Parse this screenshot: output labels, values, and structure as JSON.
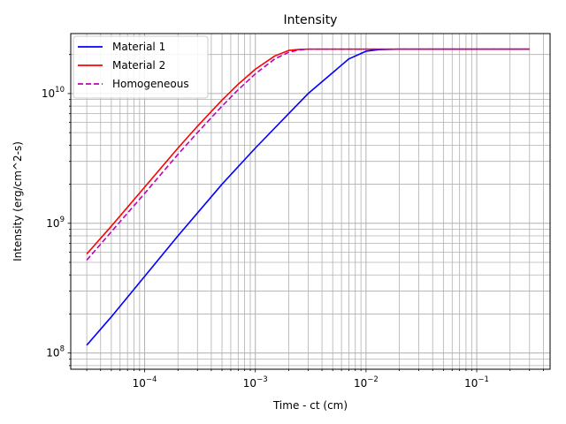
{
  "chart_data": {
    "type": "line",
    "title": "Intensity",
    "xlabel": "Time - ct (cm)",
    "ylabel": "Intensity (erg/cm^2-s)",
    "x_scale": "log",
    "y_scale": "log",
    "xlim": [
      2.15e-05,
      0.46
    ],
    "ylim": [
      75000000,
      29000000000
    ],
    "grid": true,
    "legend_position": "top-left",
    "x_ticks": [
      {
        "value": 0.0001,
        "base": "10",
        "exp": "−4"
      },
      {
        "value": 0.001,
        "base": "10",
        "exp": "−3"
      },
      {
        "value": 0.01,
        "base": "10",
        "exp": "−2"
      },
      {
        "value": 0.1,
        "base": "10",
        "exp": "−1"
      }
    ],
    "y_ticks": [
      {
        "value": 100000000,
        "base": "10",
        "exp": "8"
      },
      {
        "value": 1000000000,
        "base": "10",
        "exp": "9"
      },
      {
        "value": 10000000000,
        "base": "10",
        "exp": "10"
      }
    ],
    "series": [
      {
        "name": "Material 1",
        "color": "#0000ff",
        "style": "solid",
        "x": [
          3e-05,
          5e-05,
          0.0001,
          0.0002,
          0.0005,
          0.001,
          0.002,
          0.003,
          0.005,
          0.007,
          0.01,
          0.013,
          0.02,
          0.05,
          0.1,
          0.3
        ],
        "y": [
          115000000,
          190000000,
          390000000,
          800000000,
          2000000000,
          3800000000,
          7000000000,
          10000000000,
          14500000000,
          18500000000,
          21200000000,
          21800000000,
          22000000000,
          22000000000,
          22000000000,
          22000000000
        ]
      },
      {
        "name": "Material 2",
        "color": "#ff0000",
        "style": "solid",
        "x": [
          3e-05,
          5e-05,
          0.0001,
          0.0002,
          0.0003,
          0.0005,
          0.0007,
          0.001,
          0.0015,
          0.002,
          0.0025,
          0.003,
          0.005,
          0.01,
          0.1,
          0.3
        ],
        "y": [
          580000000,
          950000000,
          1900000000,
          3800000000,
          5600000000,
          8900000000,
          11800000000,
          15400000000,
          19500000000,
          21500000000,
          21900000000,
          22000000000,
          22000000000,
          22000000000,
          22000000000,
          22000000000
        ]
      },
      {
        "name": "Homogeneous",
        "color": "#bf00bf",
        "style": "dashed",
        "x": [
          3e-05,
          5e-05,
          0.0001,
          0.0002,
          0.0003,
          0.0005,
          0.0007,
          0.001,
          0.0015,
          0.002,
          0.0025,
          0.003,
          0.004,
          0.01,
          0.1,
          0.3
        ],
        "y": [
          520000000,
          860000000,
          1700000000,
          3400000000,
          5000000000,
          8000000000,
          10700000000,
          14200000000,
          18500000000,
          20800000000,
          21700000000,
          22000000000,
          22000000000,
          22000000000,
          22000000000,
          22000000000
        ]
      }
    ]
  }
}
